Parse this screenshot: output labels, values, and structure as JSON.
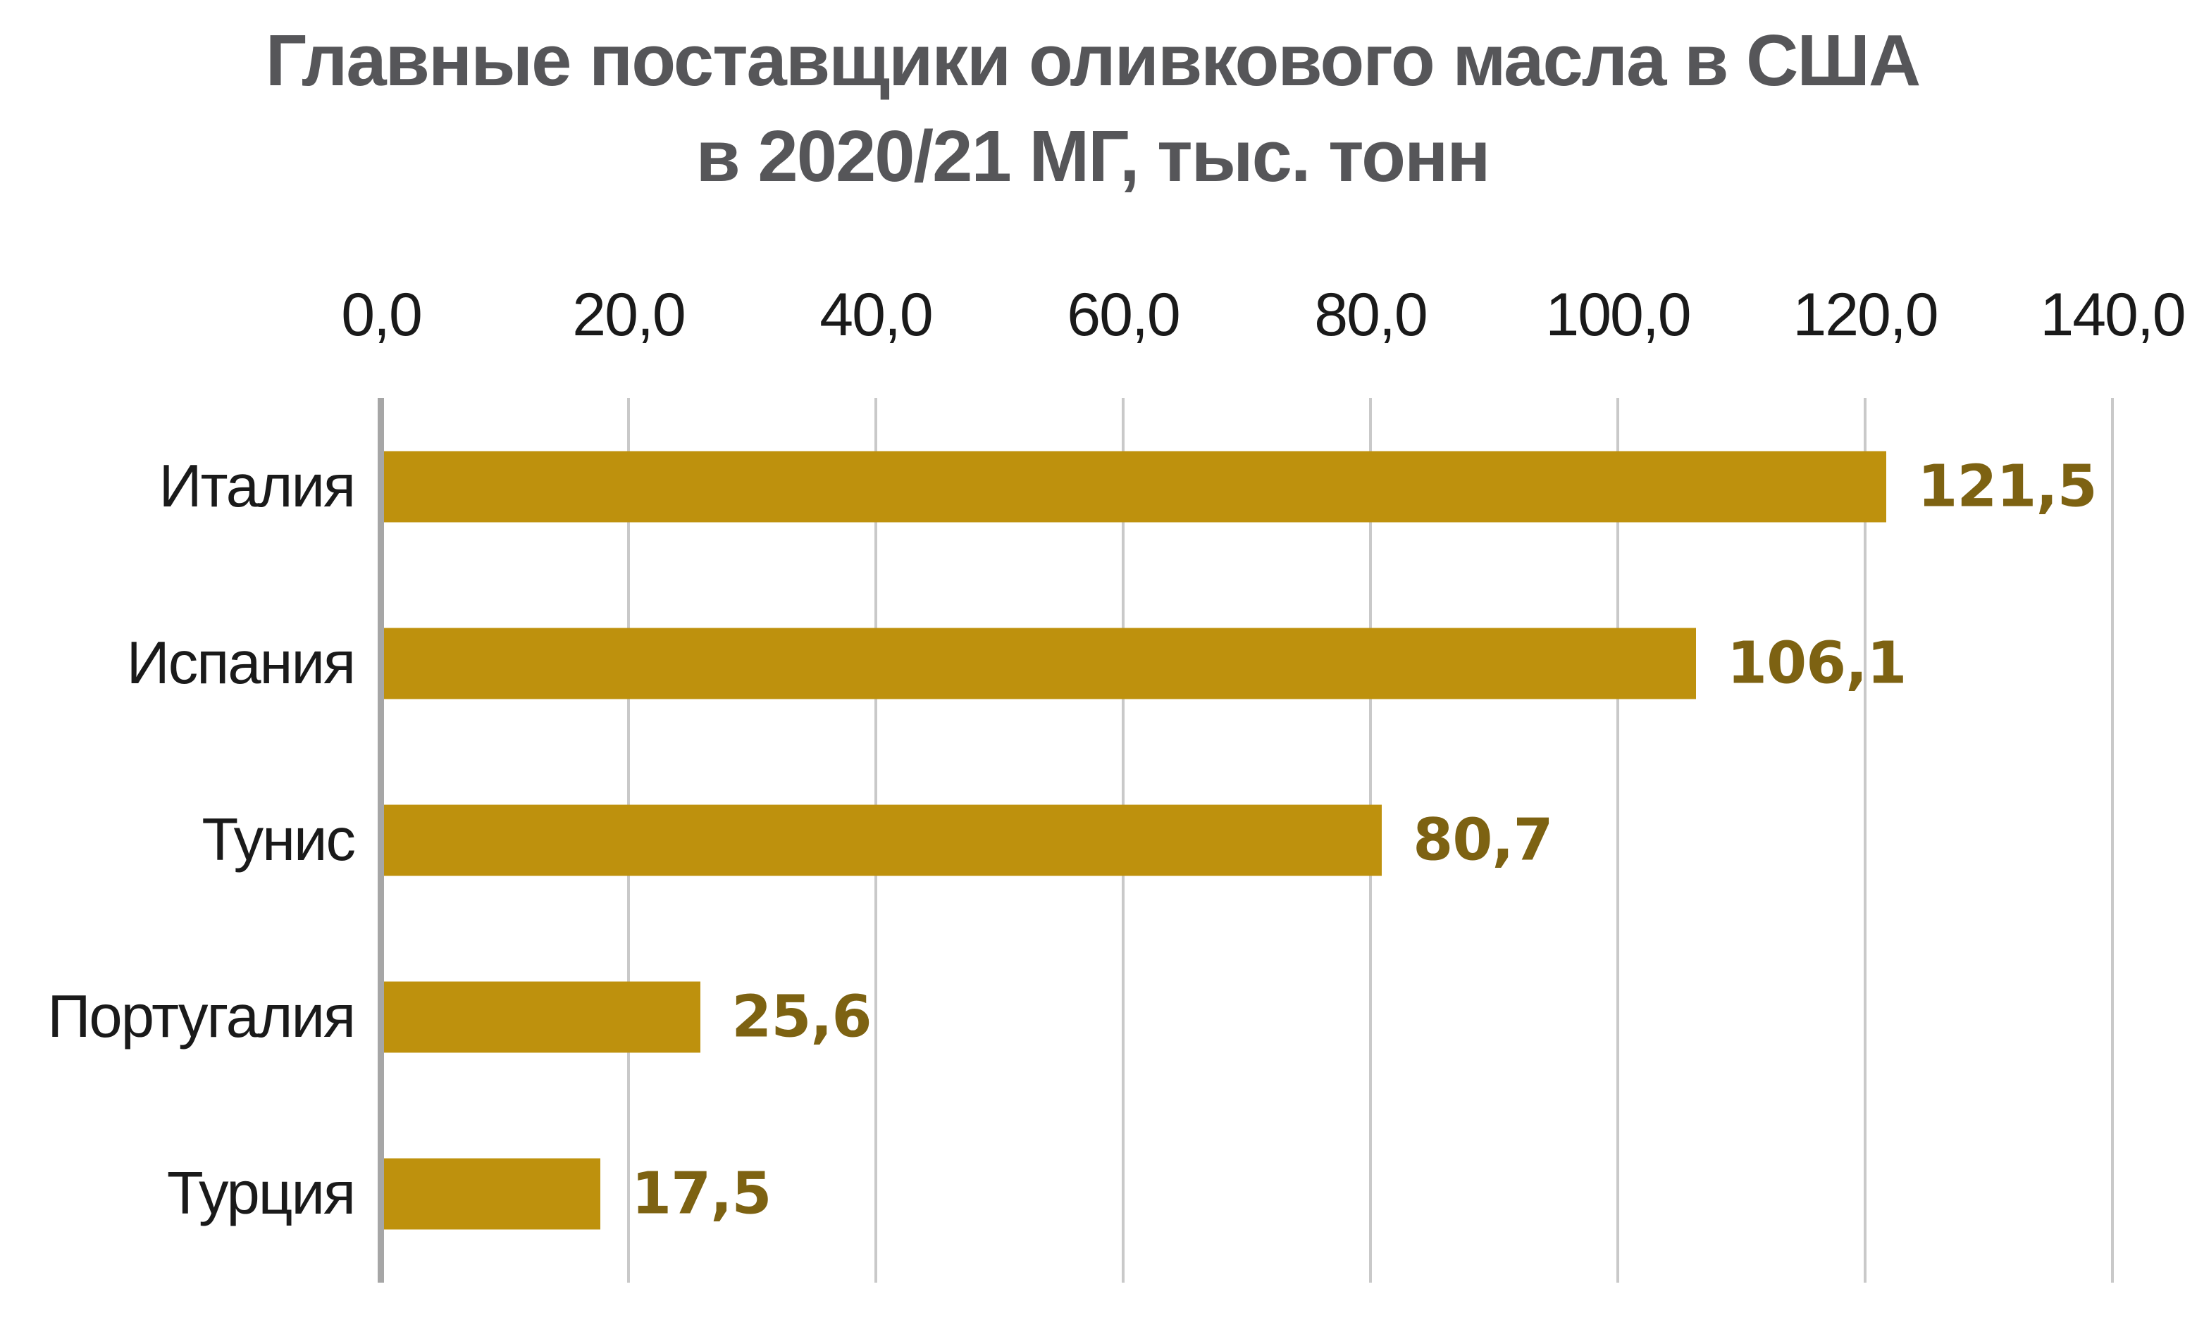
{
  "title": {
    "line1": "Главные поставщики оливкового масла в США",
    "line2": "в 2020/21 МГ, тыс. тонн"
  },
  "chart_data": {
    "type": "bar",
    "orientation": "horizontal",
    "title": "Главные поставщики оливкового масла в США в 2020/21 МГ, тыс. тонн",
    "xlabel": "",
    "ylabel": "",
    "categories": [
      "Италия",
      "Испания",
      "Тунис",
      "Португалия",
      "Турция"
    ],
    "values": [
      121.5,
      106.1,
      80.7,
      25.6,
      17.5
    ],
    "value_labels": [
      "121,5",
      "106,1",
      "80,7",
      "25,6",
      "17,5"
    ],
    "xlim": [
      0,
      140
    ],
    "x_ticks": [
      0,
      20,
      40,
      60,
      80,
      100,
      120,
      140
    ],
    "x_tick_labels": [
      "0,0",
      "20,0",
      "40,0",
      "60,0",
      "80,0",
      "100,0",
      "120,0",
      "140,0"
    ],
    "tick_position": "top",
    "grid": "vertical-only",
    "legend": "none"
  },
  "colors": {
    "bar": "#be910d",
    "value_label": "#7d6212",
    "title": "#565659",
    "axis_line": "#a6a6a6",
    "gridline": "#c9c9c9",
    "tick_text": "#1a1a1a",
    "background": "#ffffff"
  }
}
